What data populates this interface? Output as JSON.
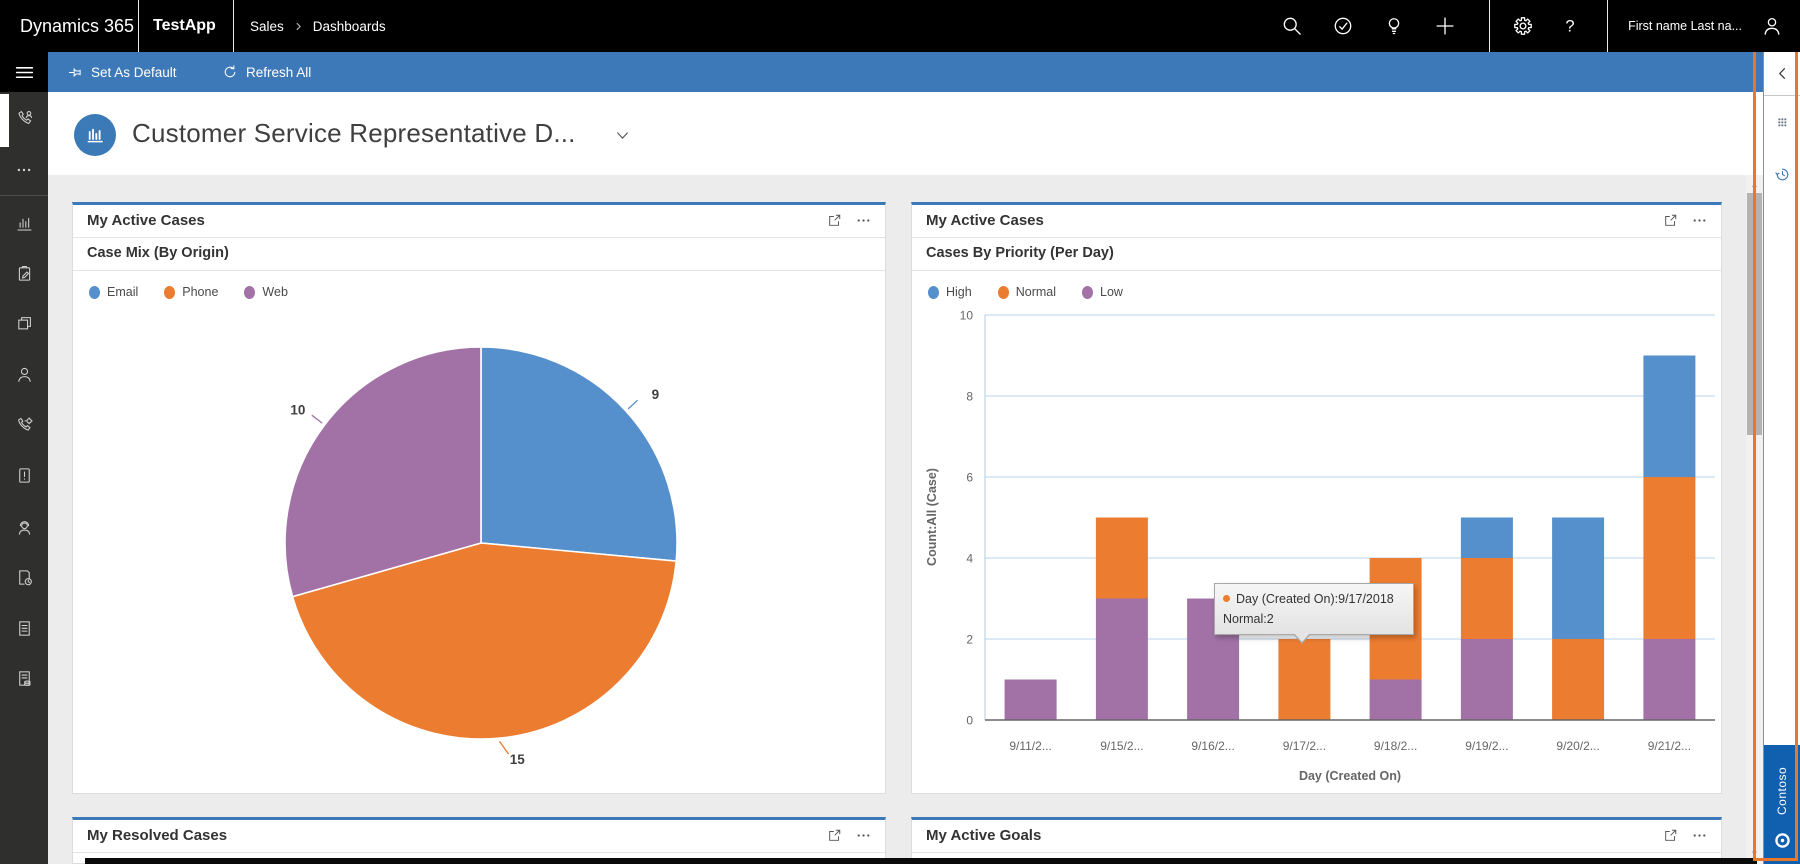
{
  "nav": {
    "brand": "Dynamics 365",
    "app_name": "TestApp",
    "breadcrumb": [
      "Sales",
      "Dashboards"
    ],
    "user_name": "First name Last na...",
    "icons": [
      "search",
      "task-check",
      "lightbulb",
      "add",
      "settings",
      "help",
      "user"
    ]
  },
  "command_bar": {
    "set_default_label": "Set As Default",
    "refresh_label": "Refresh All"
  },
  "sidebar": {
    "items": [
      "calls",
      "more",
      "dashboards",
      "activities",
      "accounts",
      "contacts",
      "service-calls",
      "cases",
      "contacts-portal",
      "scheduled-docs",
      "articles",
      "invoices"
    ]
  },
  "page": {
    "title": "Customer Service Representative D..."
  },
  "cards": [
    {
      "title": "My Active Cases",
      "subtitle": "Case Mix (By Origin)"
    },
    {
      "title": "My Active Cases",
      "subtitle": "Cases By Priority (Per Day)"
    },
    {
      "title": "My Resolved Cases"
    },
    {
      "title": "My Active Goals"
    }
  ],
  "chart_data": [
    {
      "type": "pie",
      "title": "Case Mix (By Origin)",
      "labels": [
        "Email",
        "Phone",
        "Web"
      ],
      "values": [
        9,
        15,
        10
      ],
      "colors": [
        "#5590CC",
        "#EC7C30",
        "#A272A6"
      ],
      "legend_position": "top-left"
    },
    {
      "type": "bar",
      "stacked": true,
      "title": "Cases By Priority (Per Day)",
      "categories": [
        "9/11/2...",
        "9/15/2...",
        "9/16/2...",
        "9/17/2...",
        "9/18/2...",
        "9/19/2...",
        "9/20/2...",
        "9/21/2..."
      ],
      "series": [
        {
          "name": "High",
          "color": "#5590CC",
          "values": [
            0,
            0,
            0,
            0,
            0,
            1,
            3,
            3
          ]
        },
        {
          "name": "Normal",
          "color": "#EC7C30",
          "values": [
            0,
            2,
            0,
            2,
            3,
            2,
            2,
            4
          ]
        },
        {
          "name": "Low",
          "color": "#A272A6",
          "values": [
            1,
            3,
            3,
            0,
            1,
            2,
            0,
            2
          ]
        }
      ],
      "xlabel": "Day (Created On)",
      "ylabel": "Count:All (Case)",
      "ylim": [
        0,
        10
      ],
      "yticks": [
        0,
        2,
        4,
        6,
        8,
        10
      ],
      "grid": true,
      "legend_position": "top-left"
    }
  ],
  "tooltip": {
    "line1": "Day (Created On):9/17/2018",
    "line2": "Normal:2"
  },
  "side_panel": {
    "brand": "Contoso"
  },
  "colors": {
    "accent_blue": "#3B79B7",
    "command_bar": "#3D79B9",
    "nav_black": "#000000",
    "sidebar_gray": "#2F2F2E",
    "content_bg": "#ECECEC",
    "chart_blue": "#5590CC",
    "chart_orange": "#EC7C30",
    "chart_purple": "#A272A6",
    "highlight_orange": "#E8772B",
    "contoso_blue": "#1160AF"
  }
}
